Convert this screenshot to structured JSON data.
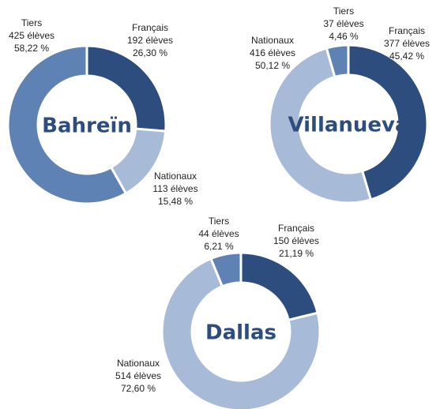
{
  "chart_data": [
    {
      "type": "donut",
      "title": "Bahreïn",
      "categories": [
        "Français",
        "Nationaux",
        "Tiers"
      ],
      "colors": [
        "#2e4d7f",
        "#a7bad8",
        "#5f82b5"
      ],
      "counts": [
        192,
        113,
        425
      ],
      "count_labels": [
        "192 élèves",
        "113 élèves",
        "425 élèves"
      ],
      "values": [
        26.3,
        15.48,
        58.22
      ],
      "value_labels": [
        "26,30 %",
        "15,48 %",
        "58,22 %"
      ]
    },
    {
      "type": "donut",
      "title": "Villanueva",
      "categories": [
        "Français",
        "Nationaux",
        "Tiers"
      ],
      "colors": [
        "#2e4d7f",
        "#a7bad8",
        "#5f82b5"
      ],
      "counts": [
        377,
        416,
        37
      ],
      "count_labels": [
        "377 élèves",
        "416 élèves",
        "37 élèves"
      ],
      "values": [
        45.42,
        50.12,
        4.46
      ],
      "value_labels": [
        "45,42 %",
        "50,12 %",
        "4,46 %"
      ]
    },
    {
      "type": "donut",
      "title": "Dallas",
      "categories": [
        "Français",
        "Nationaux",
        "Tiers"
      ],
      "colors": [
        "#2e4d7f",
        "#a7bad8",
        "#5f82b5"
      ],
      "counts": [
        150,
        514,
        44
      ],
      "count_labels": [
        "150 élèves",
        "514 élèves",
        "44 élèves"
      ],
      "values": [
        21.19,
        72.6,
        6.21
      ],
      "value_labels": [
        "21,19 %",
        "72,60 %",
        "6,21 %"
      ]
    }
  ]
}
